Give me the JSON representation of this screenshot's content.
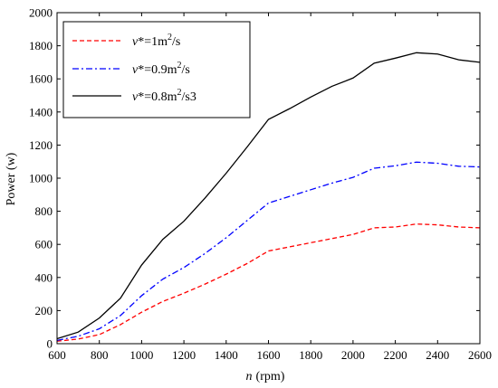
{
  "chart_data": {
    "type": "line",
    "xlabel_var": "n",
    "xlabel_unit": "(rpm)",
    "ylabel": "Power (w)",
    "xlim": [
      600,
      2600
    ],
    "ylim": [
      0,
      2000
    ],
    "xticks": [
      600,
      800,
      1000,
      1200,
      1400,
      1600,
      1800,
      2000,
      2200,
      2400,
      2600
    ],
    "yticks": [
      0,
      200,
      400,
      600,
      800,
      1000,
      1200,
      1400,
      1600,
      1800,
      2000
    ],
    "grid": false,
    "legend_position": "top-left",
    "x": [
      600,
      700,
      800,
      900,
      1000,
      1100,
      1200,
      1300,
      1400,
      1500,
      1600,
      1700,
      1800,
      1900,
      2000,
      2100,
      2200,
      2300,
      2400,
      2500,
      2600
    ],
    "series": [
      {
        "legend_var": "v",
        "legend_prefix": "*=1m",
        "legend_sup": "2",
        "legend_suffix": "/s",
        "color": "#ff0000",
        "dash": "dashed",
        "values": [
          15,
          28,
          55,
          115,
          190,
          255,
          305,
          360,
          420,
          485,
          560,
          585,
          610,
          635,
          660,
          700,
          705,
          723,
          718,
          705,
          700
        ]
      },
      {
        "legend_var": "v",
        "legend_prefix": "*=0.9m",
        "legend_sup": "2",
        "legend_suffix": "/s",
        "color": "#0000ff",
        "dash": "dashdot",
        "values": [
          20,
          45,
          90,
          170,
          290,
          390,
          460,
          545,
          640,
          745,
          850,
          890,
          930,
          970,
          1005,
          1060,
          1075,
          1097,
          1090,
          1072,
          1068
        ]
      },
      {
        "legend_var": "v",
        "legend_prefix": "*=0.8m",
        "legend_sup": "2",
        "legend_suffix": "/s3",
        "color": "#000000",
        "dash": "solid",
        "values": [
          30,
          70,
          155,
          275,
          475,
          630,
          740,
          880,
          1030,
          1190,
          1355,
          1420,
          1490,
          1555,
          1605,
          1695,
          1725,
          1758,
          1750,
          1715,
          1700
        ]
      }
    ]
  }
}
